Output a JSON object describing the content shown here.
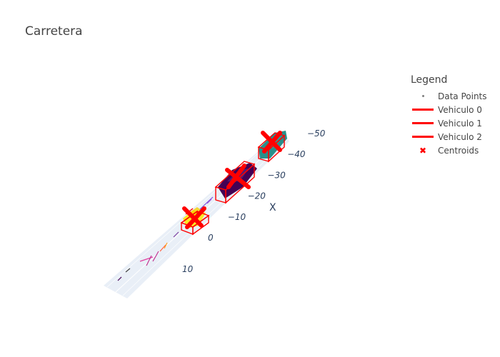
{
  "title": "Carretera",
  "legend": {
    "title": "Legend",
    "items": [
      {
        "label": "Data Points",
        "symbol": "dot",
        "color": "#7f7f7f"
      },
      {
        "label": "Vehiculo 0",
        "symbol": "line",
        "color": "#ff0000"
      },
      {
        "label": "Vehiculo 1",
        "symbol": "line",
        "color": "#ff0000"
      },
      {
        "label": "Vehiculo 2",
        "symbol": "line",
        "color": "#ff0000"
      },
      {
        "label": "Centroids",
        "symbol": "x",
        "color": "#ff0000"
      }
    ]
  },
  "chart_data": {
    "type": "scatter3d",
    "title": "Carretera",
    "x_axis": {
      "title": "X",
      "ticks": [
        -10,
        -20,
        -30,
        -40,
        -50
      ],
      "range": [
        -55,
        0
      ]
    },
    "y_axis": {
      "title": "",
      "ticks": [
        0,
        10
      ],
      "range": [
        -5,
        12
      ]
    },
    "colors": {
      "cluster_0": "#fde725",
      "cluster_1": "#440154",
      "cluster_2": "#2a8f8a",
      "bbox": "#ff0000",
      "centroid": "#ff0000",
      "road": "#e5ecf6"
    },
    "series": [
      {
        "name": "Data Points",
        "type": "markers",
        "clusters": [
          "yellow",
          "purple",
          "teal"
        ]
      },
      {
        "name": "Vehiculo 0",
        "type": "bounding_box",
        "center_x": -7
      },
      {
        "name": "Vehiculo 1",
        "type": "bounding_box",
        "center_x": -24
      },
      {
        "name": "Vehiculo 2",
        "type": "bounding_box",
        "center_x": -45
      },
      {
        "name": "Centroids",
        "type": "markers",
        "symbol": "x",
        "count": 3
      }
    ]
  }
}
